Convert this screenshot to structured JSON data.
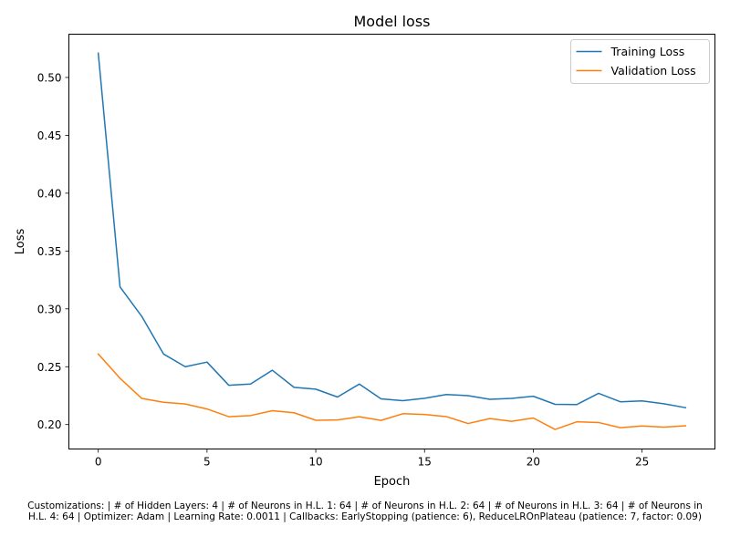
{
  "chart_data": {
    "type": "line",
    "title": "Model loss",
    "xlabel": "Epoch",
    "ylabel": "Loss",
    "xlim": [
      -1.35,
      28.35
    ],
    "ylim": [
      0.1789,
      0.5374
    ],
    "xticks": [
      0,
      5,
      10,
      15,
      20,
      25
    ],
    "yticks": [
      0.2,
      0.25,
      0.3,
      0.35,
      0.4,
      0.45,
      0.5
    ],
    "ytick_labels": [
      "0.20",
      "0.25",
      "0.30",
      "0.35",
      "0.40",
      "0.45",
      "0.50"
    ],
    "grid": false,
    "legend_position": "top-right",
    "x": [
      0,
      1,
      2,
      3,
      4,
      5,
      6,
      7,
      8,
      9,
      10,
      11,
      12,
      13,
      14,
      15,
      16,
      17,
      18,
      19,
      20,
      21,
      22,
      23,
      24,
      25,
      26,
      27
    ],
    "series": [
      {
        "name": "Training Loss",
        "color": "#1f77b4",
        "values": [
          0.521,
          0.319,
          0.2935,
          0.261,
          0.25,
          0.254,
          0.234,
          0.235,
          0.247,
          0.2322,
          0.2306,
          0.2238,
          0.235,
          0.2222,
          0.2207,
          0.2227,
          0.226,
          0.225,
          0.2218,
          0.2226,
          0.2245,
          0.2175,
          0.2173,
          0.227,
          0.2197,
          0.2205,
          0.218,
          0.2146
        ]
      },
      {
        "name": "Validation Loss",
        "color": "#ff7f0e",
        "values": [
          0.261,
          0.24,
          0.2226,
          0.2193,
          0.2178,
          0.2135,
          0.2068,
          0.2078,
          0.212,
          0.2102,
          0.2037,
          0.204,
          0.2068,
          0.2036,
          0.2094,
          0.2087,
          0.2069,
          0.2009,
          0.2052,
          0.2028,
          0.2057,
          0.1958,
          0.2024,
          0.2018,
          0.1973,
          0.1988,
          0.1978,
          0.199
        ]
      }
    ]
  },
  "caption": {
    "line1": "Customizations: | # of Hidden Layers: 4 | # of Neurons in H.L. 1: 64 | # of Neurons in H.L. 2: 64 | # of Neurons in H.L. 3: 64 | # of Neurons in",
    "line2": "H.L. 4: 64 | Optimizer: Adam | Learning Rate: 0.0011 | Callbacks: EarlyStopping (patience: 6), ReduceLROnPlateau (patience: 7, factor: 0.09)"
  }
}
